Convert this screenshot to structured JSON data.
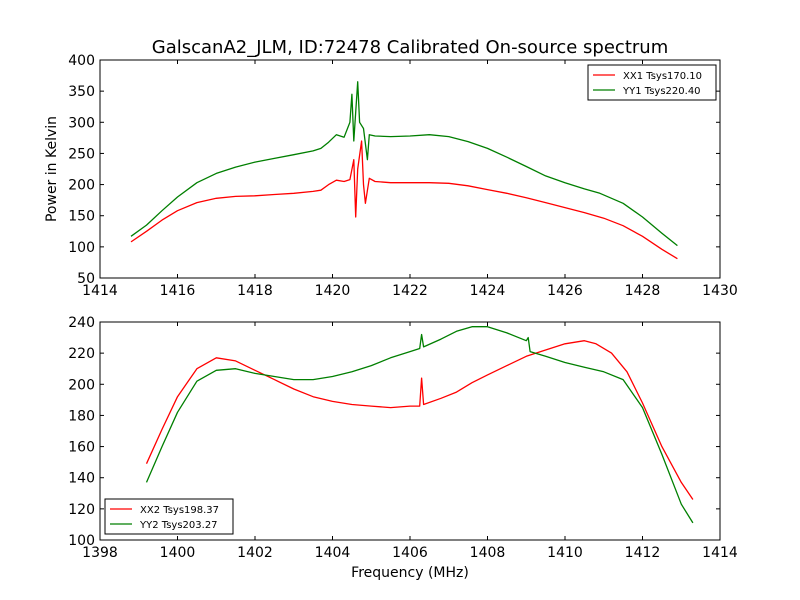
{
  "title": "GalscanA2_JLM, ID:72478 Calibrated On-source spectrum",
  "colors": {
    "red": "#ff0000",
    "green": "#007f00"
  },
  "chart_data": [
    {
      "type": "line",
      "ylabel": "Power in Kelvin",
      "xlabel": "",
      "xlim": [
        1414,
        1430
      ],
      "ylim": [
        50,
        400
      ],
      "xticks": [
        1414,
        1416,
        1418,
        1420,
        1422,
        1424,
        1426,
        1428,
        1430
      ],
      "yticks": [
        50,
        100,
        150,
        200,
        250,
        300,
        350,
        400
      ],
      "legend_position": "top-right",
      "series": [
        {
          "name": "XX1 Tsys170.10",
          "color": "#ff0000",
          "points": [
            [
              1414.8,
              108
            ],
            [
              1415.2,
              125
            ],
            [
              1415.6,
              143
            ],
            [
              1416.0,
              158
            ],
            [
              1416.5,
              171
            ],
            [
              1417.0,
              178
            ],
            [
              1417.5,
              181
            ],
            [
              1418.0,
              182
            ],
            [
              1418.5,
              184
            ],
            [
              1419.0,
              186
            ],
            [
              1419.5,
              189
            ],
            [
              1419.7,
              191
            ],
            [
              1419.9,
              200
            ],
            [
              1420.1,
              207
            ],
            [
              1420.3,
              205
            ],
            [
              1420.45,
              208
            ],
            [
              1420.55,
              240
            ],
            [
              1420.6,
              148
            ],
            [
              1420.65,
              225
            ],
            [
              1420.75,
              270
            ],
            [
              1420.8,
              200
            ],
            [
              1420.85,
              170
            ],
            [
              1420.95,
              210
            ],
            [
              1421.1,
              205
            ],
            [
              1421.5,
              203
            ],
            [
              1422.0,
              203
            ],
            [
              1422.5,
              203
            ],
            [
              1423.0,
              202
            ],
            [
              1423.5,
              198
            ],
            [
              1424.0,
              192
            ],
            [
              1424.5,
              186
            ],
            [
              1425.0,
              179
            ],
            [
              1425.5,
              171
            ],
            [
              1426.0,
              163
            ],
            [
              1426.5,
              155
            ],
            [
              1427.0,
              146
            ],
            [
              1427.5,
              134
            ],
            [
              1428.0,
              117
            ],
            [
              1428.5,
              96
            ],
            [
              1428.9,
              81
            ]
          ]
        },
        {
          "name": "YY1 Tsys220.40",
          "color": "#007f00",
          "points": [
            [
              1414.8,
              117
            ],
            [
              1415.2,
              135
            ],
            [
              1415.6,
              158
            ],
            [
              1416.0,
              180
            ],
            [
              1416.5,
              203
            ],
            [
              1417.0,
              218
            ],
            [
              1417.5,
              228
            ],
            [
              1418.0,
              236
            ],
            [
              1418.5,
              242
            ],
            [
              1419.0,
              248
            ],
            [
              1419.5,
              254
            ],
            [
              1419.7,
              258
            ],
            [
              1419.9,
              268
            ],
            [
              1420.1,
              280
            ],
            [
              1420.3,
              276
            ],
            [
              1420.45,
              300
            ],
            [
              1420.5,
              345
            ],
            [
              1420.55,
              270
            ],
            [
              1420.65,
              365
            ],
            [
              1420.7,
              300
            ],
            [
              1420.8,
              290
            ],
            [
              1420.9,
              240
            ],
            [
              1420.95,
              280
            ],
            [
              1421.1,
              278
            ],
            [
              1421.5,
              277
            ],
            [
              1422.0,
              278
            ],
            [
              1422.5,
              280
            ],
            [
              1423.0,
              277
            ],
            [
              1423.5,
              269
            ],
            [
              1424.0,
              258
            ],
            [
              1424.5,
              244
            ],
            [
              1425.0,
              229
            ],
            [
              1425.5,
              214
            ],
            [
              1426.0,
              203
            ],
            [
              1426.5,
              193
            ],
            [
              1426.9,
              186
            ],
            [
              1427.5,
              170
            ],
            [
              1428.0,
              148
            ],
            [
              1428.5,
              122
            ],
            [
              1428.9,
              102
            ]
          ]
        }
      ]
    },
    {
      "type": "line",
      "ylabel": "",
      "xlabel": "Frequency (MHz)",
      "xlim": [
        1398,
        1414
      ],
      "ylim": [
        100,
        240
      ],
      "xticks": [
        1398,
        1400,
        1402,
        1404,
        1406,
        1408,
        1410,
        1412,
        1414
      ],
      "yticks": [
        100,
        120,
        140,
        160,
        180,
        200,
        220,
        240
      ],
      "legend_position": "bottom-left",
      "series": [
        {
          "name": "XX2 Tsys198.37",
          "color": "#ff0000",
          "points": [
            [
              1399.2,
              149
            ],
            [
              1399.6,
              171
            ],
            [
              1400.0,
              192
            ],
            [
              1400.5,
              210
            ],
            [
              1401.0,
              217
            ],
            [
              1401.5,
              215
            ],
            [
              1402.0,
              209
            ],
            [
              1402.5,
              203
            ],
            [
              1403.0,
              197
            ],
            [
              1403.5,
              192
            ],
            [
              1404.0,
              189
            ],
            [
              1404.5,
              187
            ],
            [
              1405.0,
              186
            ],
            [
              1405.5,
              185
            ],
            [
              1406.0,
              186
            ],
            [
              1406.25,
              186
            ],
            [
              1406.3,
              204
            ],
            [
              1406.35,
              187
            ],
            [
              1406.8,
              191
            ],
            [
              1407.2,
              195
            ],
            [
              1407.6,
              201
            ],
            [
              1408.0,
              206
            ],
            [
              1408.5,
              212
            ],
            [
              1409.0,
              218
            ],
            [
              1409.5,
              222
            ],
            [
              1410.0,
              226
            ],
            [
              1410.5,
              228
            ],
            [
              1410.8,
              226
            ],
            [
              1411.2,
              220
            ],
            [
              1411.6,
              208
            ],
            [
              1412.0,
              188
            ],
            [
              1412.5,
              160
            ],
            [
              1413.0,
              137
            ],
            [
              1413.3,
              126
            ]
          ]
        },
        {
          "name": "YY2 Tsys203.27",
          "color": "#007f00",
          "points": [
            [
              1399.2,
              137
            ],
            [
              1399.6,
              160
            ],
            [
              1400.0,
              182
            ],
            [
              1400.5,
              202
            ],
            [
              1401.0,
              209
            ],
            [
              1401.5,
              210
            ],
            [
              1402.0,
              207
            ],
            [
              1402.5,
              205
            ],
            [
              1403.0,
              203
            ],
            [
              1403.5,
              203
            ],
            [
              1404.0,
              205
            ],
            [
              1404.5,
              208
            ],
            [
              1405.0,
              212
            ],
            [
              1405.5,
              217
            ],
            [
              1406.0,
              221
            ],
            [
              1406.25,
              223
            ],
            [
              1406.3,
              232
            ],
            [
              1406.35,
              224
            ],
            [
              1406.8,
              229
            ],
            [
              1407.2,
              234
            ],
            [
              1407.6,
              237
            ],
            [
              1408.0,
              237
            ],
            [
              1408.5,
              233
            ],
            [
              1409.0,
              228
            ],
            [
              1409.05,
              230
            ],
            [
              1409.1,
              221
            ],
            [
              1409.5,
              218
            ],
            [
              1410.0,
              214
            ],
            [
              1410.5,
              211
            ],
            [
              1411.0,
              208
            ],
            [
              1411.5,
              203
            ],
            [
              1412.0,
              185
            ],
            [
              1412.5,
              155
            ],
            [
              1413.0,
              123
            ],
            [
              1413.3,
              111
            ]
          ]
        }
      ]
    }
  ]
}
